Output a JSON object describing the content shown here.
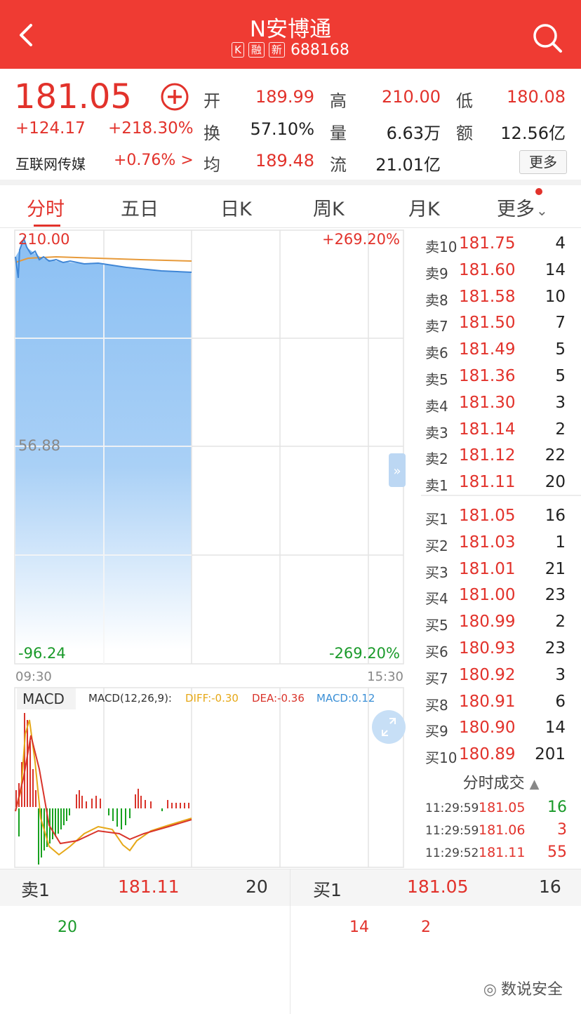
{
  "header": {
    "title": "N安博通",
    "tags": [
      "K",
      "融",
      "新"
    ],
    "code": "688168"
  },
  "quote": {
    "price": "181.05",
    "change": "+124.17",
    "change_pct": "+218.30%",
    "sector": "互联网传媒",
    "sector_change": "+0.76% >",
    "open_label": "开",
    "open": "189.99",
    "high_label": "高",
    "high": "210.00",
    "low_label": "低",
    "low": "180.08",
    "turnover_label": "换",
    "turnover": "57.10%",
    "volume_label": "量",
    "volume": "6.63万",
    "amount_label": "额",
    "amount": "12.56亿",
    "avg_label": "均",
    "avg": "189.48",
    "float_label": "流",
    "float": "21.01亿",
    "more": "更多"
  },
  "tabs": [
    "分时",
    "五日",
    "日K",
    "周K",
    "月K",
    "更多"
  ],
  "chart": {
    "y_top": "210.00",
    "y_mid": "56.88",
    "y_bottom": "-96.24",
    "pct_top": "+269.20%",
    "pct_bottom": "-269.20%",
    "time_start": "09:30",
    "time_end": "15:30",
    "macd_label": "MACD",
    "macd_params": "MACD(12,26,9):",
    "diff": "DIFF:-0.30",
    "dea": "DEA:-0.36",
    "macd_val": "MACD:0.12",
    "colors": {
      "diff": "#e6a817",
      "dea": "#d9342b",
      "macd": "#3a8fd6"
    }
  },
  "orderbook": {
    "asks": [
      {
        "n": "卖10",
        "p": "181.75",
        "v": "4"
      },
      {
        "n": "卖9",
        "p": "181.60",
        "v": "14"
      },
      {
        "n": "卖8",
        "p": "181.58",
        "v": "10"
      },
      {
        "n": "卖7",
        "p": "181.50",
        "v": "7"
      },
      {
        "n": "卖6",
        "p": "181.49",
        "v": "5"
      },
      {
        "n": "卖5",
        "p": "181.36",
        "v": "5"
      },
      {
        "n": "卖4",
        "p": "181.30",
        "v": "3"
      },
      {
        "n": "卖3",
        "p": "181.14",
        "v": "2"
      },
      {
        "n": "卖2",
        "p": "181.12",
        "v": "22"
      },
      {
        "n": "卖1",
        "p": "181.11",
        "v": "20"
      }
    ],
    "bids": [
      {
        "n": "买1",
        "p": "181.05",
        "v": "16"
      },
      {
        "n": "买2",
        "p": "181.03",
        "v": "1"
      },
      {
        "n": "买3",
        "p": "181.01",
        "v": "21"
      },
      {
        "n": "买4",
        "p": "181.00",
        "v": "23"
      },
      {
        "n": "买5",
        "p": "180.99",
        "v": "2"
      },
      {
        "n": "买6",
        "p": "180.93",
        "v": "23"
      },
      {
        "n": "买7",
        "p": "180.92",
        "v": "3"
      },
      {
        "n": "买8",
        "p": "180.91",
        "v": "6"
      },
      {
        "n": "买9",
        "p": "180.90",
        "v": "14"
      },
      {
        "n": "买10",
        "p": "180.89",
        "v": "201"
      }
    ]
  },
  "trades": {
    "title": "分时成交",
    "rows": [
      {
        "t": "11:29:59",
        "p": "181.05",
        "v": "16",
        "up": true
      },
      {
        "t": "11:29:59",
        "p": "181.06",
        "v": "3",
        "up": false
      },
      {
        "t": "11:29:52",
        "p": "181.11",
        "v": "55",
        "up": false
      }
    ]
  },
  "bottom": {
    "ask_label": "卖1",
    "ask_price": "181.11",
    "ask_vol": "20",
    "bid_label": "买1",
    "bid_price": "181.05",
    "bid_vol": "16",
    "sub_ask": "20",
    "sub_bid1": "14",
    "sub_bid2": "2"
  },
  "watermark": "数说安全"
}
